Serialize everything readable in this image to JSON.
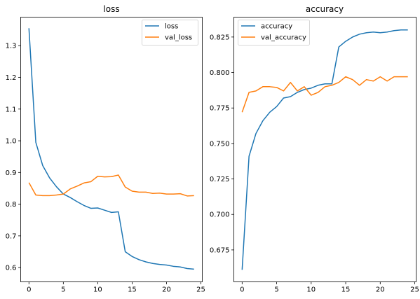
{
  "chart_data": [
    {
      "type": "line",
      "title": "loss",
      "xlabel": "",
      "ylabel": "",
      "x": [
        0,
        1,
        2,
        3,
        4,
        5,
        6,
        7,
        8,
        9,
        10,
        11,
        12,
        13,
        14,
        15,
        16,
        17,
        18,
        19,
        20,
        21,
        22,
        23,
        24
      ],
      "xlim": [
        -1.2,
        25.2
      ],
      "ylim": [
        0.555,
        1.39
      ],
      "xticks": [
        0,
        5,
        10,
        15,
        20,
        25
      ],
      "yticks": [
        0.6,
        0.7,
        0.8,
        0.9,
        1.0,
        1.1,
        1.2,
        1.3
      ],
      "ytick_labels": [
        "0.6",
        "0.7",
        "0.8",
        "0.9",
        "1.0",
        "1.1",
        "1.2",
        "1.3"
      ],
      "grid": false,
      "legend_position": "upper right",
      "series": [
        {
          "name": "loss",
          "color": "#1f77b4",
          "values": [
            1.355,
            0.995,
            0.922,
            0.883,
            0.855,
            0.832,
            0.821,
            0.808,
            0.796,
            0.787,
            0.788,
            0.781,
            0.774,
            0.776,
            0.65,
            0.635,
            0.625,
            0.618,
            0.613,
            0.61,
            0.608,
            0.604,
            0.602,
            0.597,
            0.595
          ]
        },
        {
          "name": "val_loss",
          "color": "#ff7f0e",
          "values": [
            0.868,
            0.829,
            0.827,
            0.827,
            0.829,
            0.832,
            0.848,
            0.857,
            0.867,
            0.871,
            0.888,
            0.886,
            0.887,
            0.892,
            0.854,
            0.841,
            0.838,
            0.838,
            0.834,
            0.835,
            0.832,
            0.832,
            0.833,
            0.826,
            0.827
          ]
        }
      ]
    },
    {
      "type": "line",
      "title": "accuracy",
      "xlabel": "",
      "ylabel": "",
      "x": [
        0,
        1,
        2,
        3,
        4,
        5,
        6,
        7,
        8,
        9,
        10,
        11,
        12,
        13,
        14,
        15,
        16,
        17,
        18,
        19,
        20,
        21,
        22,
        23,
        24
      ],
      "xlim": [
        -1.2,
        25.2
      ],
      "ylim": [
        0.6525,
        0.839
      ],
      "xticks": [
        0,
        5,
        10,
        15,
        20,
        25
      ],
      "yticks": [
        0.675,
        0.7,
        0.725,
        0.75,
        0.775,
        0.8,
        0.825
      ],
      "ytick_labels": [
        "0.675",
        "0.700",
        "0.725",
        "0.750",
        "0.775",
        "0.800",
        "0.825"
      ],
      "grid": false,
      "legend_position": "upper left",
      "series": [
        {
          "name": "accuracy",
          "color": "#1f77b4",
          "values": [
            0.661,
            0.741,
            0.757,
            0.766,
            0.772,
            0.776,
            0.782,
            0.783,
            0.786,
            0.788,
            0.789,
            0.791,
            0.792,
            0.792,
            0.818,
            0.822,
            0.825,
            0.827,
            0.828,
            0.8285,
            0.828,
            0.8285,
            0.8295,
            0.83,
            0.83
          ]
        },
        {
          "name": "val_accuracy",
          "color": "#ff7f0e",
          "values": [
            0.772,
            0.786,
            0.787,
            0.79,
            0.79,
            0.7895,
            0.787,
            0.793,
            0.787,
            0.79,
            0.784,
            0.786,
            0.79,
            0.791,
            0.793,
            0.797,
            0.795,
            0.791,
            0.795,
            0.794,
            0.797,
            0.794,
            0.797,
            0.797,
            0.797
          ]
        }
      ]
    }
  ]
}
